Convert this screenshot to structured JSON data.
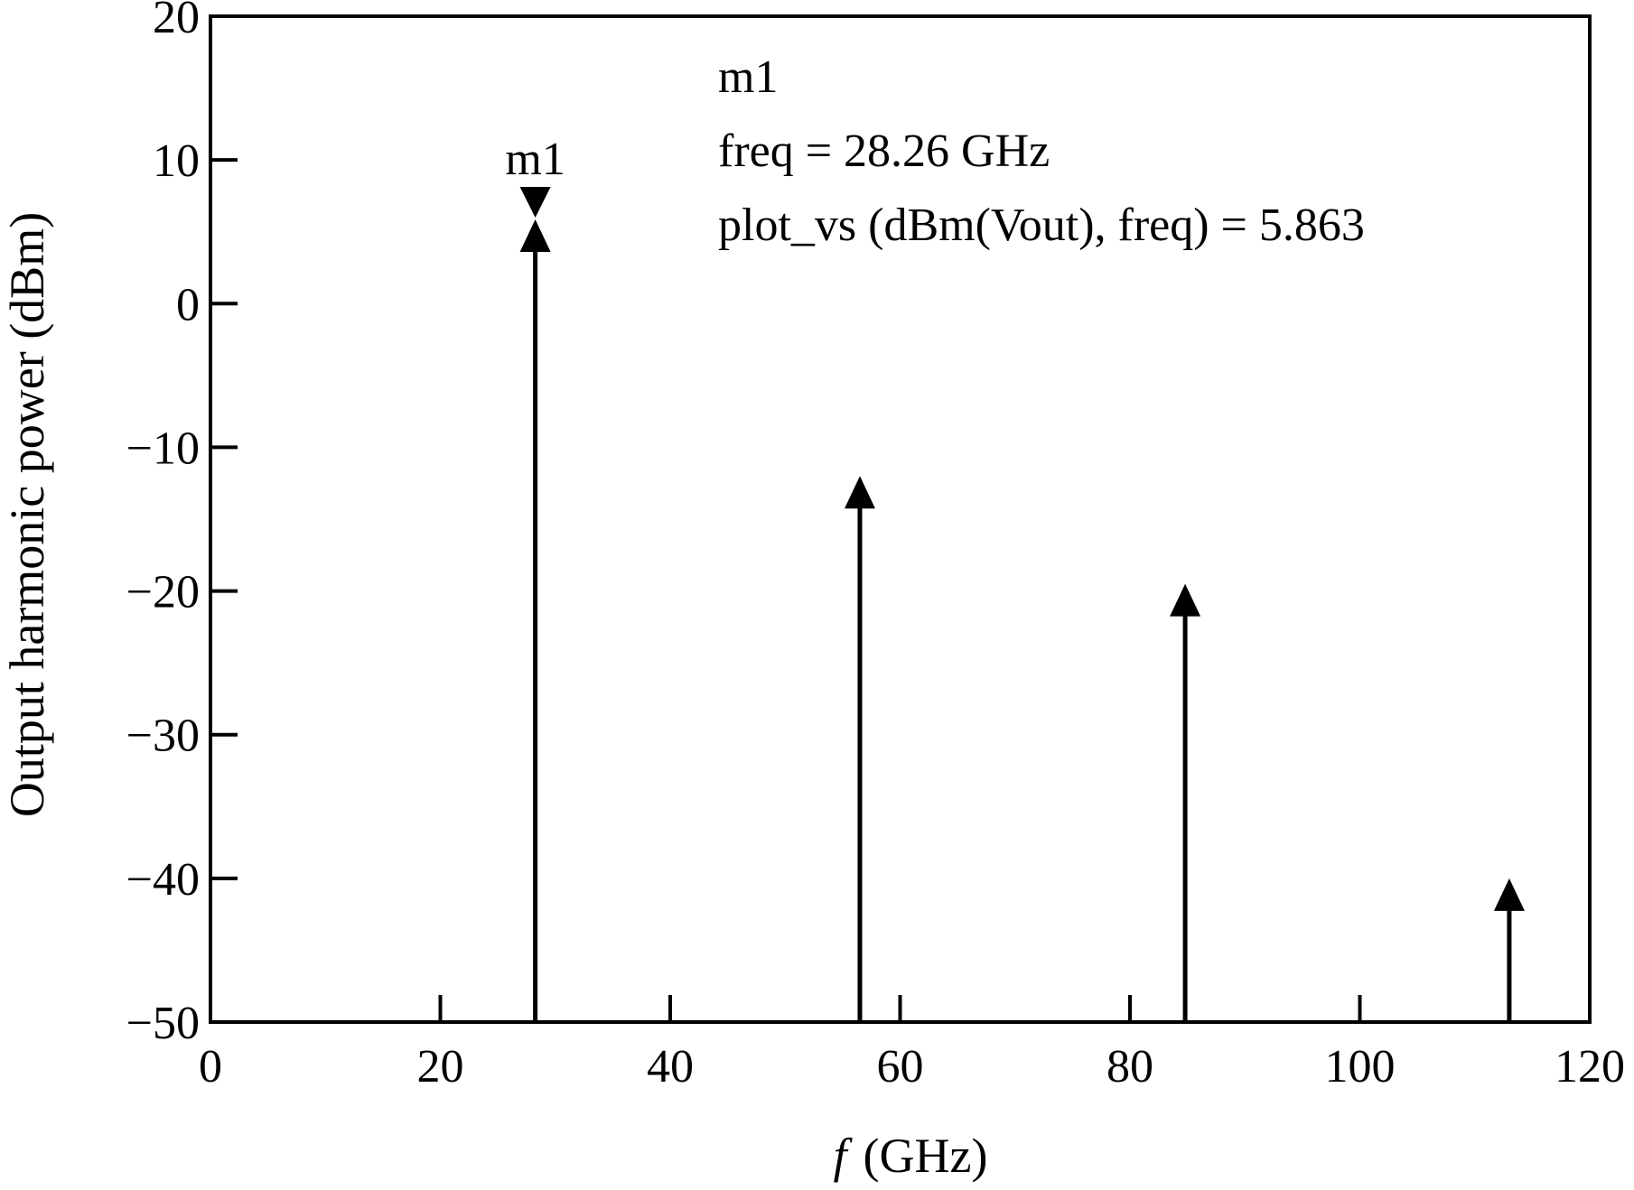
{
  "chart_data": {
    "type": "stem",
    "xlabel_italic": "f",
    "xlabel_unit": "(GHz)",
    "ylabel": "Output harmonic power (dBm)",
    "xlim": [
      0,
      120
    ],
    "ylim": [
      -50,
      20
    ],
    "xticks": [
      0,
      20,
      40,
      60,
      80,
      100,
      120
    ],
    "xtick_labels": [
      "0",
      "20",
      "40",
      "60",
      "80",
      "100",
      "120"
    ],
    "yticks": [
      20,
      10,
      0,
      -10,
      -20,
      -30,
      -40,
      -50
    ],
    "ytick_labels": [
      "20",
      "10",
      "0",
      "−10",
      "−20",
      "−30",
      "−40",
      "−50"
    ],
    "grid": false,
    "points": [
      {
        "x": 28.26,
        "y": 5.863
      },
      {
        "x": 56.5,
        "y": -12
      },
      {
        "x": 84.8,
        "y": -19.5
      },
      {
        "x": 113.0,
        "y": -40
      }
    ],
    "marker": {
      "label": "m1",
      "x": 28.26,
      "y": 5.863,
      "readout": [
        "m1",
        "freq = 28.26 GHz",
        "plot_vs (dBm(Vout), freq) = 5.863"
      ]
    }
  }
}
